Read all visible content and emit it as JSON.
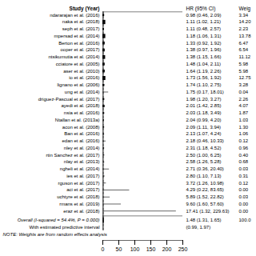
{
  "chart_data": {
    "type": "forest",
    "columns": {
      "study": "Study (Year)",
      "ci": "HR (95% CI)",
      "weight": "Weig"
    },
    "studies": [
      {
        "label": "ndararajan et al. (2016)",
        "hr": 0.98,
        "lo": 0.46,
        "hi": 2.09,
        "weight": 3.34,
        "ci_label": "0.98 (0.46, 2.09)",
        "weight_label": "3.34"
      },
      {
        "label": "naka et al. (2018)",
        "hr": 1.11,
        "lo": 1.02,
        "hi": 1.21,
        "weight": 14.2,
        "ci_label": "1.11 (1.02, 1.21)",
        "weight_label": "14.20"
      },
      {
        "label": "seph et al. (2017)",
        "hr": 1.11,
        "lo": 0.48,
        "hi": 2.57,
        "weight": 2.23,
        "ci_label": "1.11 (0.48, 2.57)",
        "weight_label": "2.23"
      },
      {
        "label": "mpersad et al. (2014)",
        "hr": 1.18,
        "lo": 1.06,
        "hi": 1.31,
        "weight": 13.78,
        "ci_label": "1.18 (1.06, 1.31)",
        "weight_label": "13.78"
      },
      {
        "label": "Berton et al. (2016)",
        "hr": 1.33,
        "lo": 0.92,
        "hi": 1.92,
        "weight": 6.47,
        "ci_label": "1.33 (0.92, 1.92)",
        "weight_label": "6.47"
      },
      {
        "label": "ooper et al. (2017)",
        "hr": 1.38,
        "lo": 0.97,
        "hi": 1.96,
        "weight": 6.54,
        "ci_label": "1.38 (0.97, 1.96)",
        "weight_label": "6.54"
      },
      {
        "label": "ntsikumutia et al. (2014)",
        "hr": 1.38,
        "lo": 1.15,
        "hi": 1.66,
        "weight": 11.12,
        "ci_label": "1.38 (1.15, 1.66)",
        "weight_label": "11.12"
      },
      {
        "label": "cciatore et al. (2005)",
        "hr": 1.48,
        "lo": 1.04,
        "hi": 2.11,
        "weight": 5.98,
        "ci_label": "1.48 (1.04, 2.11)",
        "weight_label": "5.98"
      },
      {
        "label": "aser et al. (2010)",
        "hr": 1.64,
        "lo": 1.19,
        "hi": 2.26,
        "weight": 5.98,
        "ci_label": "1.64 (1.19, 2.26)",
        "weight_label": "5.98"
      },
      {
        "label": "io et al. (2016)",
        "hr": 1.73,
        "lo": 1.56,
        "hi": 1.92,
        "weight": 12.75,
        "ci_label": "1.73 (1.56, 1.92)",
        "weight_label": "12.75"
      },
      {
        "label": "lignano et al. (2006)",
        "hr": 1.74,
        "lo": 1.1,
        "hi": 2.75,
        "weight": 3.28,
        "ci_label": "1.74 (1.10, 2.75)",
        "weight_label": "3.28"
      },
      {
        "label": "ung et al. (2014)",
        "hr": 1.75,
        "lo": 0.17,
        "hi": 18.01,
        "weight": 0.04,
        "ci_label": "1.75 (0.17, 18.01)",
        "weight_label": "0.04"
      },
      {
        "label": "driguez-Pascual et al. (2017)",
        "hr": 1.98,
        "lo": 1.2,
        "hi": 3.27,
        "weight": 2.26,
        "ci_label": "1.98 (1.20, 3.27)",
        "weight_label": "2.26"
      },
      {
        "label": "ayedi et al. (2018)",
        "hr": 2.01,
        "lo": 1.42,
        "hi": 2.85,
        "weight": 4.07,
        "ci_label": "2.01 (1.42, 2.85)",
        "weight_label": "4.07"
      },
      {
        "label": "nsia et al. (2016)",
        "hr": 2.03,
        "lo": 1.18,
        "hi": 3.49,
        "weight": 1.87,
        "ci_label": "2.03 (1.18, 3.49)",
        "weight_label": "1.87"
      },
      {
        "label": "Ntallan et al. (2013a)",
        "hr": 2.04,
        "lo": 0.99,
        "hi": 4.2,
        "weight": 1.03,
        "ci_label": "2.04 (0.99, 4.20)",
        "weight_label": "1.03"
      },
      {
        "label": "acon et al. (2008)",
        "hr": 2.09,
        "lo": 1.11,
        "hi": 3.94,
        "weight": 1.3,
        "ci_label": "2.09 (1.11, 3.94)",
        "weight_label": "1.30"
      },
      {
        "label": "Ban et al. (2016)",
        "hr": 2.13,
        "lo": 1.07,
        "hi": 4.24,
        "weight": 1.06,
        "ci_label": "2.13 (1.07, 4.24)",
        "weight_label": "1.06"
      },
      {
        "label": "edan et al. (2016)",
        "hr": 2.18,
        "lo": 0.46,
        "hi": 10.33,
        "weight": 0.12,
        "ci_label": "2.18 (0.46, 10.33)",
        "weight_label": "0.12"
      },
      {
        "label": "nley et al. (2014)",
        "hr": 2.31,
        "lo": 1.18,
        "hi": 4.52,
        "weight": 0.96,
        "ci_label": "2.31 (1.18, 4.52)",
        "weight_label": "0.96"
      },
      {
        "label": "rtin Sanchez et al. (2017)",
        "hr": 2.5,
        "lo": 1.0,
        "hi": 6.25,
        "weight": 0.4,
        "ci_label": "2.50 (1.00, 6.25)",
        "weight_label": "0.40"
      },
      {
        "label": "nlay et al. (2013)",
        "hr": 2.58,
        "lo": 1.26,
        "hi": 5.28,
        "weight": 0.68,
        "ci_label": "2.58 (1.26, 5.28)",
        "weight_label": "0.68"
      },
      {
        "label": "ngheli et al. (2014)",
        "hr": 2.71,
        "lo": 0.36,
        "hi": 20.4,
        "weight": 0.03,
        "ci_label": "2.71 (0.36, 20.40)",
        "weight_label": "0.03"
      },
      {
        "label": "ies et al. (2017)",
        "hr": 2.8,
        "lo": 1.1,
        "hi": 7.13,
        "weight": 0.31,
        "ci_label": "2.80 (1.10, 7.13)",
        "weight_label": "0.31"
      },
      {
        "label": "rguson et al. (2017)",
        "hr": 3.72,
        "lo": 1.26,
        "hi": 10.98,
        "weight": 0.12,
        "ci_label": "3.72 (1.26, 10.98)",
        "weight_label": "0.12"
      },
      {
        "label": "aci et al. (2017)",
        "hr": 4.29,
        "lo": 0.22,
        "hi": 83.65,
        "weight": 0.0,
        "ci_label": "4.29 (0.22, 83.65)",
        "weight_label": "0.00"
      },
      {
        "label": "uchtyre et al. (2018)",
        "hr": 5.89,
        "lo": 1.52,
        "hi": 22.82,
        "weight": 0.03,
        "ci_label": "5.89 (1.52, 22.82)",
        "weight_label": "0.03"
      },
      {
        "label": "rmans et al. (2019)",
        "hr": 9.6,
        "lo": 1.6,
        "hi": 57.6,
        "weight": 0.0,
        "ci_label": "9.60 (1.60, 57.60)",
        "weight_label": "0.00"
      },
      {
        "label": "eraz et al. (2018)",
        "hr": 17.41,
        "lo": 1.32,
        "hi": 229.63,
        "weight": 0.0,
        "ci_label": "17.41 (1.32, 229.63)",
        "weight_label": "0.00"
      }
    ],
    "overall": {
      "label": "Overall (I-squared = 54.4%, P = 0.000)",
      "hr": 1.48,
      "lo": 1.31,
      "hi": 1.65,
      "ci_label": "1.48 (1.31, 1.65)",
      "weight_label": "100.0"
    },
    "predictive_interval": {
      "label": "With estimated predictive interval",
      "lo": 0.99,
      "hi": 1.97,
      "ci_label": "(0.99, 1.97)"
    },
    "note": "NOTE: Weights are from random effects analysis",
    "reference_line": 1,
    "xlim": [
      0,
      250
    ],
    "xticks": [
      0,
      50,
      100,
      150,
      200,
      250
    ]
  }
}
